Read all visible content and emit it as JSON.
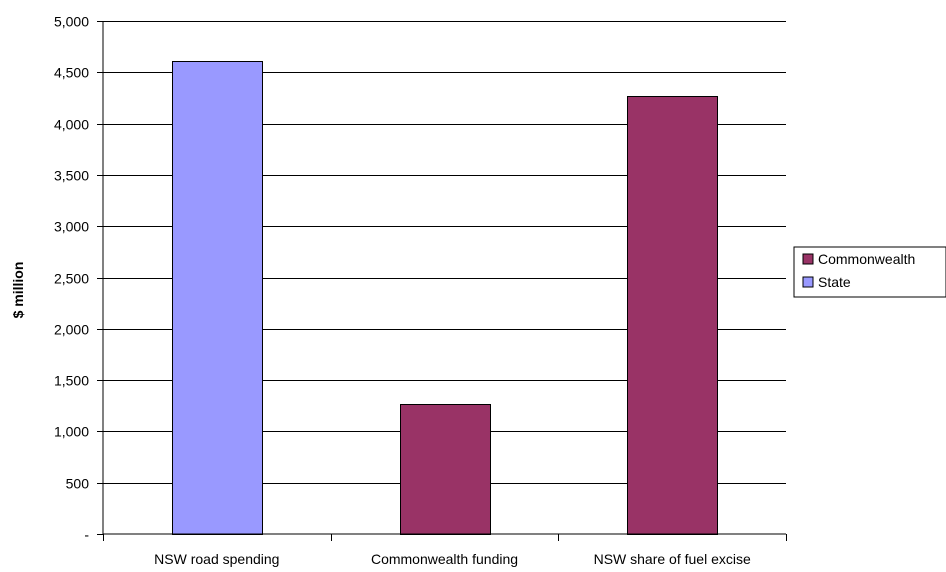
{
  "chart_data": {
    "type": "bar",
    "title": "",
    "xlabel": "",
    "ylabel": "$ million",
    "categories": [
      "NSW road spending",
      "Commonwealth funding",
      "NSW share of fuel excise"
    ],
    "ylim": [
      0,
      5000
    ],
    "yticks": [
      0,
      500,
      1000,
      1500,
      2000,
      2500,
      3000,
      3500,
      4000,
      4500,
      5000
    ],
    "ytick_labels": [
      "-",
      "500",
      "1,000",
      "1,500",
      "2,000",
      "2,500",
      "3,000",
      "3,500",
      "4,000",
      "4,500",
      "5,000"
    ],
    "grid": true,
    "legend_position": "right",
    "series": [
      {
        "name": "Commonwealth",
        "color": "#993366",
        "values": [
          null,
          1265,
          4265
        ]
      },
      {
        "name": "State",
        "color": "#9999ff",
        "values": [
          4615,
          null,
          null
        ]
      }
    ]
  }
}
